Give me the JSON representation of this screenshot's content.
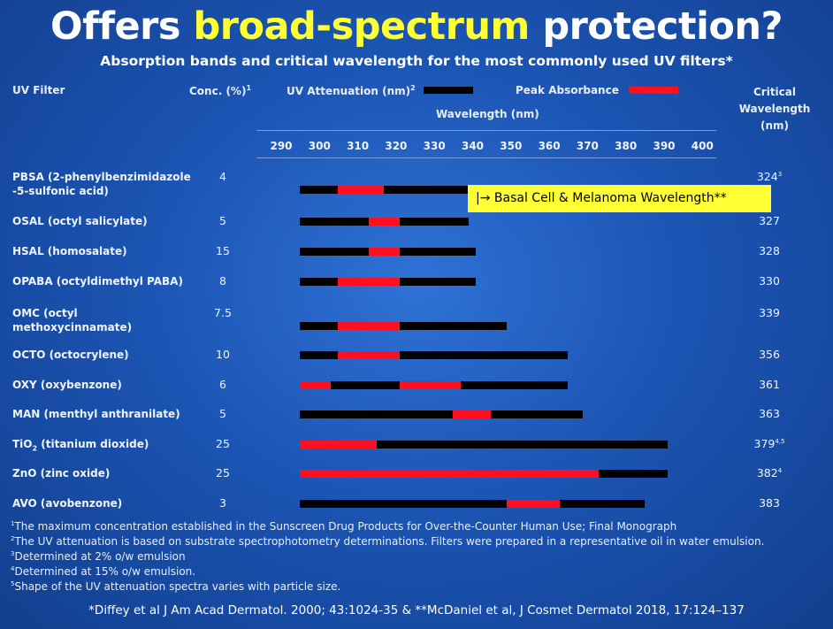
{
  "title": {
    "part1": "Offers ",
    "highlight": "broad-spectrum",
    "part2": " protection?"
  },
  "subtitle": "Absorption bands and critical wavelength for the most commonly used UV filters*",
  "headers": {
    "uv_filter": "UV Filter",
    "conc": "Conc. (%)",
    "conc_sup": "1",
    "attenuation": "UV Attenuation (nm)",
    "attenuation_sup": "2",
    "peak": "Peak Absorbance",
    "wavelength": "Wavelength (nm)",
    "critical_line1": "Critical",
    "critical_line2": "Wavelength (nm)"
  },
  "callout": "|→ Basal Cell & Melanoma Wavelength**",
  "colors": {
    "attenuation": "#000000",
    "peak": "#ff0f1f",
    "highlight": "#ffff33"
  },
  "chart_data": {
    "type": "bar",
    "title": "Absorption bands and critical wavelength for the most commonly used UV filters*",
    "xlabel": "Wavelength (nm)",
    "xlim": [
      290,
      400
    ],
    "xticks": [
      290,
      300,
      310,
      320,
      330,
      340,
      350,
      360,
      370,
      380,
      390,
      400
    ],
    "legend": [
      {
        "name": "UV Attenuation (nm)",
        "color": "#000000"
      },
      {
        "name": "Peak Absorbance",
        "color": "#ff0f1f"
      }
    ],
    "rows": [
      {
        "name": "PBSA (2-phenylbenzimidazole",
        "name2": "-5-sulfonic acid)",
        "conc": "4",
        "critical": "324",
        "critical_sup": "3",
        "attenuation": [
          290,
          334
        ],
        "peaks": [
          [
            300,
            312
          ]
        ]
      },
      {
        "name": "OSAL (octyl salicylate)",
        "conc": "5",
        "critical": "327",
        "critical_sup": "",
        "attenuation": [
          290,
          334
        ],
        "peaks": [
          [
            308,
            316
          ]
        ]
      },
      {
        "name": "HSAL (homosalate)",
        "conc": "15",
        "critical": "328",
        "critical_sup": "",
        "attenuation": [
          290,
          336
        ],
        "peaks": [
          [
            308,
            316
          ]
        ]
      },
      {
        "name": "OPABA (octyldimethyl PABA)",
        "conc": "8",
        "critical": "330",
        "critical_sup": "",
        "attenuation": [
          290,
          336
        ],
        "peaks": [
          [
            300,
            316
          ]
        ]
      },
      {
        "name": "OMC (octyl",
        "name2": "methoxycinnamate)",
        "conc": "7.5",
        "critical": "339",
        "critical_sup": "",
        "attenuation": [
          290,
          344
        ],
        "peaks": [
          [
            300,
            316
          ]
        ]
      },
      {
        "name": "OCTO (octocrylene)",
        "conc": "10",
        "critical": "356",
        "critical_sup": "",
        "attenuation": [
          290,
          360
        ],
        "peaks": [
          [
            300,
            316
          ]
        ]
      },
      {
        "name": "OXY (oxybenzone)",
        "conc": "6",
        "critical": "361",
        "critical_sup": "",
        "attenuation": [
          290,
          360
        ],
        "peaks": [
          [
            290,
            298
          ],
          [
            316,
            332
          ]
        ]
      },
      {
        "name": "MAN (menthyl anthranilate)",
        "conc": "5",
        "critical": "363",
        "critical_sup": "",
        "attenuation": [
          290,
          364
        ],
        "peaks": [
          [
            330,
            340
          ]
        ]
      },
      {
        "name": "TiO",
        "name_sub": "2",
        "name_rest": " (titanium dioxide)",
        "conc": "25",
        "critical": "379",
        "critical_sup": "4,5",
        "attenuation": [
          290,
          386
        ],
        "peaks": [
          [
            290,
            310
          ]
        ]
      },
      {
        "name": "ZnO (zinc oxide)",
        "conc": "25",
        "critical": "382",
        "critical_sup": "4",
        "attenuation": [
          290,
          386
        ],
        "peaks": [
          [
            290,
            368
          ]
        ]
      },
      {
        "name": "AVO (avobenzone)",
        "conc": "3",
        "critical": "383",
        "critical_sup": "",
        "attenuation": [
          290,
          380
        ],
        "peaks": [
          [
            344,
            358
          ]
        ]
      }
    ]
  },
  "footnotes": [
    {
      "sup": "1",
      "text": "The maximum concentration established in the Sunscreen Drug Products for Over-the-Counter Human Use; Final Monograph"
    },
    {
      "sup": "2",
      "text": "The UV attenuation is based on substrate spectrophotometry determinations.  Filters were prepared in a representative oil in water emulsion."
    },
    {
      "sup": "3",
      "text": "Determined at 2% o/w emulsion"
    },
    {
      "sup": "4",
      "text": "Determined at 15% o/w emulsion."
    },
    {
      "sup": "5",
      "text": "Shape of the UV attenuation spectra varies with particle size."
    }
  ],
  "citation": "*Diffey et al J Am Acad Dermatol. 2000; 43:1024-35 & **McDaniel et al, J Cosmet Dermatol 2018, 17:124–137"
}
